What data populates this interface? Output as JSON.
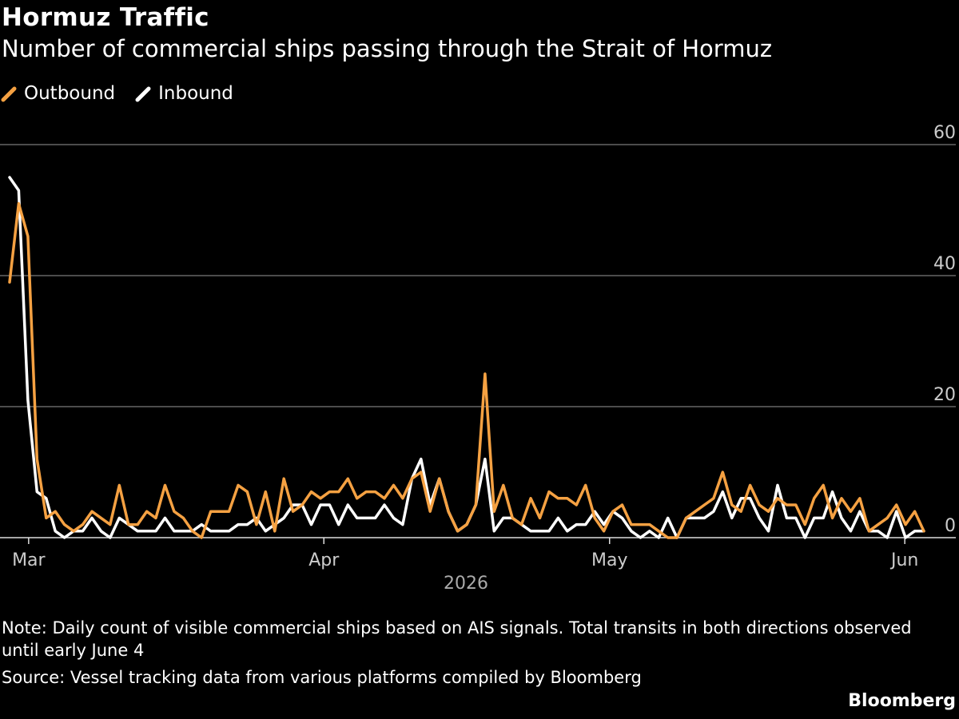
{
  "header": {
    "title": "Hormuz Traffic",
    "subtitle": "Number of commercial ships passing through the Strait of Hormuz"
  },
  "legend": [
    {
      "label": "Outbound",
      "color": "#f5a142"
    },
    {
      "label": "Inbound",
      "color": "#ffffff"
    }
  ],
  "footer": {
    "note": "Note: Daily count of visible commercial ships based on AIS signals. Total transits in both directions observed until early June 4",
    "source": "Source: Vessel tracking data from various platforms compiled by Bloomberg",
    "brand": "Bloomberg"
  },
  "chart_data": {
    "type": "line",
    "title": "Hormuz Traffic",
    "subtitle": "Number of commercial ships passing through the Strait of Hormuz",
    "xlabel": "2026",
    "ylabel": "",
    "x_start": "2026-02-27",
    "x_end": "2026-06-03",
    "x_ticks": [
      {
        "date": "2026-03-01",
        "label": "Mar"
      },
      {
        "date": "2026-04-01",
        "label": "Apr"
      },
      {
        "date": "2026-05-01",
        "label": "May"
      },
      {
        "date": "2026-06-01",
        "label": "Jun"
      }
    ],
    "y_ticks": [
      0,
      20,
      40,
      60
    ],
    "ylim": [
      -1,
      60
    ],
    "grid": true,
    "legend_position": "top-left",
    "series": [
      {
        "name": "Outbound",
        "color": "#f5a142",
        "values": [
          39,
          51,
          46,
          12,
          3,
          4,
          2,
          1,
          2,
          4,
          3,
          2,
          8,
          2,
          2,
          4,
          3,
          8,
          4,
          3,
          1,
          0,
          4,
          4,
          4,
          8,
          7,
          2,
          7,
          1,
          9,
          4,
          5,
          7,
          6,
          7,
          7,
          9,
          6,
          7,
          7,
          6,
          8,
          6,
          9,
          10,
          4,
          9,
          4,
          1,
          2,
          5,
          25,
          4,
          8,
          3,
          2,
          6,
          3,
          7,
          6,
          6,
          5,
          8,
          3,
          1,
          4,
          5,
          2,
          2,
          2,
          1,
          0,
          0,
          3,
          4,
          5,
          6,
          10,
          5,
          4,
          8,
          5,
          4,
          6,
          5,
          5,
          2,
          6,
          8,
          3,
          6,
          4,
          6,
          1,
          2,
          3,
          5,
          2,
          4,
          1
        ]
      },
      {
        "name": "Inbound",
        "color": "#ffffff",
        "values": [
          55,
          53,
          21,
          7,
          6,
          1,
          0,
          1,
          1,
          3,
          1,
          0,
          3,
          2,
          1,
          1,
          1,
          3,
          1,
          1,
          1,
          2,
          1,
          1,
          1,
          2,
          2,
          3,
          1,
          2,
          3,
          5,
          5,
          2,
          5,
          5,
          2,
          5,
          3,
          3,
          3,
          5,
          3,
          2,
          9,
          12,
          5,
          9,
          4,
          1,
          2,
          5,
          12,
          1,
          3,
          3,
          2,
          1,
          1,
          1,
          3,
          1,
          2,
          2,
          4,
          2,
          4,
          3,
          1,
          0,
          1,
          0,
          3,
          0,
          3,
          3,
          3,
          4,
          7,
          3,
          6,
          6,
          3,
          1,
          8,
          3,
          3,
          0,
          3,
          3,
          7,
          3,
          1,
          4,
          1,
          1,
          0,
          4,
          0,
          1,
          1
        ]
      }
    ]
  }
}
